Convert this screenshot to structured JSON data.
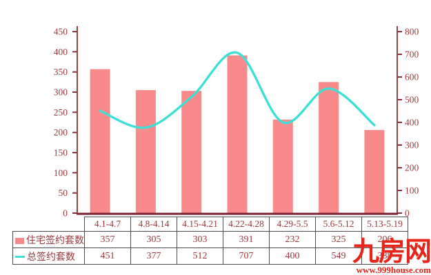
{
  "chart_data": {
    "type": "bar+line",
    "title": "",
    "categories": [
      "4.1-4.7",
      "4.8-4.14",
      "4.15-4.21",
      "4.22-4.28",
      "4.29-5.5",
      "5.6-5.12",
      "5.13-5.19"
    ],
    "series": [
      {
        "name": "住宅签约套数",
        "type": "bar",
        "axis": "left",
        "values": [
          357,
          305,
          303,
          391,
          232,
          325,
          206
        ]
      },
      {
        "name": "总签约套数",
        "type": "line",
        "axis": "right",
        "values": [
          451,
          377,
          512,
          707,
          400,
          549,
          388
        ]
      }
    ],
    "left_axis": {
      "min": 0,
      "max": 450,
      "step": 50,
      "ticks": [
        0,
        50,
        100,
        150,
        200,
        250,
        300,
        350,
        400,
        450
      ]
    },
    "right_axis": {
      "min": 0,
      "max": 800,
      "step": 100,
      "ticks": [
        0,
        100,
        200,
        300,
        400,
        500,
        600,
        700,
        800
      ]
    },
    "grid": false,
    "legend_position": "table-left-column"
  },
  "table": {
    "columns": [
      "4.1-4.7",
      "4.8-4.14",
      "4.15-4.21",
      "4.22-4.28",
      "4.29-5.5",
      "5.6-5.12",
      "5.13-5.19"
    ],
    "rows": [
      {
        "label": "住宅签约套数",
        "swatch": "bar",
        "values": [
          "357",
          "305",
          "303",
          "391",
          "232",
          "325",
          "206"
        ]
      },
      {
        "label": "总签约套数",
        "swatch": "line",
        "values": [
          "451",
          "377",
          "512",
          "707",
          "400",
          "549",
          "388"
        ]
      }
    ]
  },
  "watermark": {
    "brand": "九房网",
    "url": "www.999house.com"
  },
  "colors": {
    "bar": "#f98a8c",
    "line": "#3ee0d6",
    "axis": "#8b2e38",
    "x_axis": "#7a1f2e",
    "text": "#9b3a3c",
    "table_border": "#4a4a4a",
    "watermark": "#e8251b",
    "background": "#ffffff"
  }
}
